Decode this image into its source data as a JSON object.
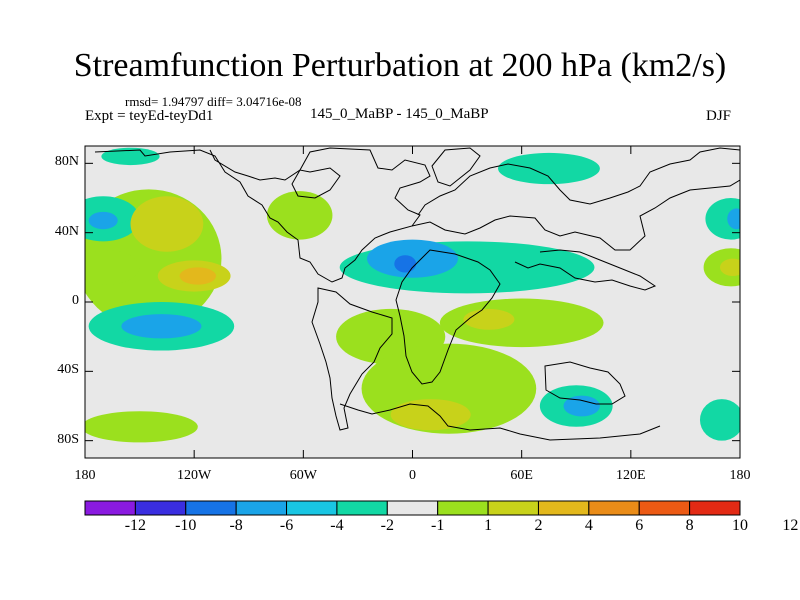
{
  "chart_data": {
    "type": "heatmap",
    "title": "Streamfunction Perturbation at 200 hPa (km2/s)",
    "stats_line": "rmsd= 1.94797 diff= 3.04716e-08",
    "left_label": "Expt = teyEd-teyDd1",
    "center_label": "145_0_MaBP - 145_0_MaBP",
    "right_label": "DJF",
    "x_range": [
      -180,
      180
    ],
    "y_range": [
      -90,
      90
    ],
    "x_ticks": [
      {
        "value": -180,
        "label": "180"
      },
      {
        "value": -120,
        "label": "120W"
      },
      {
        "value": -60,
        "label": "60W"
      },
      {
        "value": 0,
        "label": "0"
      },
      {
        "value": 60,
        "label": "60E"
      },
      {
        "value": 120,
        "label": "120E"
      },
      {
        "value": 180,
        "label": "180"
      }
    ],
    "y_ticks": [
      {
        "value": 80,
        "label": "80N"
      },
      {
        "value": 40,
        "label": "40N"
      },
      {
        "value": 0,
        "label": "0"
      },
      {
        "value": -40,
        "label": "40S"
      },
      {
        "value": -80,
        "label": "80S"
      }
    ],
    "colorbar": {
      "colors": [
        "#8a1ae0",
        "#3a2ee0",
        "#1673e6",
        "#1aa4e8",
        "#19c6e3",
        "#12d8a4",
        "#e8e8e8",
        "#9be01e",
        "#c8d21a",
        "#e3b81c",
        "#ea8c18",
        "#ec5a14",
        "#e32a14"
      ],
      "labels": [
        "-12",
        "-10",
        "-8",
        "-6",
        "-4",
        "-2",
        "-1",
        "1",
        "2",
        "4",
        "6",
        "8",
        "10",
        "12"
      ]
    },
    "regions": [
      {
        "level": 2,
        "lon": -145,
        "lat": 25,
        "rx": 40,
        "ry": 40
      },
      {
        "level": 2,
        "lon": -62,
        "lat": 50,
        "rx": 18,
        "ry": 14
      },
      {
        "level": 4,
        "lon": -135,
        "lat": 45,
        "rx": 20,
        "ry": 16
      },
      {
        "level": 4,
        "lon": -120,
        "lat": 15,
        "rx": 20,
        "ry": 9
      },
      {
        "level": 6,
        "lon": -118,
        "lat": 15,
        "rx": 10,
        "ry": 5
      },
      {
        "level": 2,
        "lon": -168,
        "lat": 20,
        "rx": 18,
        "ry": 10
      },
      {
        "level": 2,
        "lon": 175,
        "lat": 20,
        "rx": 15,
        "ry": 11
      },
      {
        "level": 4,
        "lon": 176,
        "lat": 20,
        "rx": 7,
        "ry": 5
      },
      {
        "level": -2,
        "lon": -170,
        "lat": 48,
        "rx": 20,
        "ry": 13
      },
      {
        "level": -4,
        "lon": -170,
        "lat": 47,
        "rx": 8,
        "ry": 5
      },
      {
        "level": -2,
        "lon": 175,
        "lat": 48,
        "rx": 14,
        "ry": 12
      },
      {
        "level": -4,
        "lon": 178,
        "lat": 48,
        "rx": 5,
        "ry": 6
      },
      {
        "level": -2,
        "lon": 30,
        "lat": 20,
        "rx": 70,
        "ry": 15
      },
      {
        "level": -4,
        "lon": 0,
        "lat": 25,
        "rx": 25,
        "ry": 11
      },
      {
        "level": -6,
        "lon": -4,
        "lat": 22,
        "rx": 6,
        "ry": 5
      },
      {
        "level": -2,
        "lon": 75,
        "lat": 77,
        "rx": 28,
        "ry": 9
      },
      {
        "level": -2,
        "lon": -138,
        "lat": -14,
        "rx": 40,
        "ry": 14
      },
      {
        "level": -4,
        "lon": -138,
        "lat": -14,
        "rx": 22,
        "ry": 7
      },
      {
        "level": 2,
        "lon": -12,
        "lat": -20,
        "rx": 30,
        "ry": 16
      },
      {
        "level": 2,
        "lon": 20,
        "lat": -50,
        "rx": 48,
        "ry": 26
      },
      {
        "level": 2,
        "lon": 60,
        "lat": -12,
        "rx": 45,
        "ry": 14
      },
      {
        "level": 4,
        "lon": 42,
        "lat": -10,
        "rx": 14,
        "ry": 6
      },
      {
        "level": 4,
        "lon": 10,
        "lat": -65,
        "rx": 22,
        "ry": 9
      },
      {
        "level": 2,
        "lon": -150,
        "lat": -72,
        "rx": 32,
        "ry": 9
      },
      {
        "level": -2,
        "lon": 90,
        "lat": -60,
        "rx": 20,
        "ry": 12
      },
      {
        "level": -4,
        "lon": 93,
        "lat": -60,
        "rx": 10,
        "ry": 6
      },
      {
        "level": -2,
        "lon": 170,
        "lat": -68,
        "rx": 12,
        "ry": 12
      },
      {
        "level": -2,
        "lon": -155,
        "lat": 84,
        "rx": 16,
        "ry": 5
      }
    ]
  }
}
